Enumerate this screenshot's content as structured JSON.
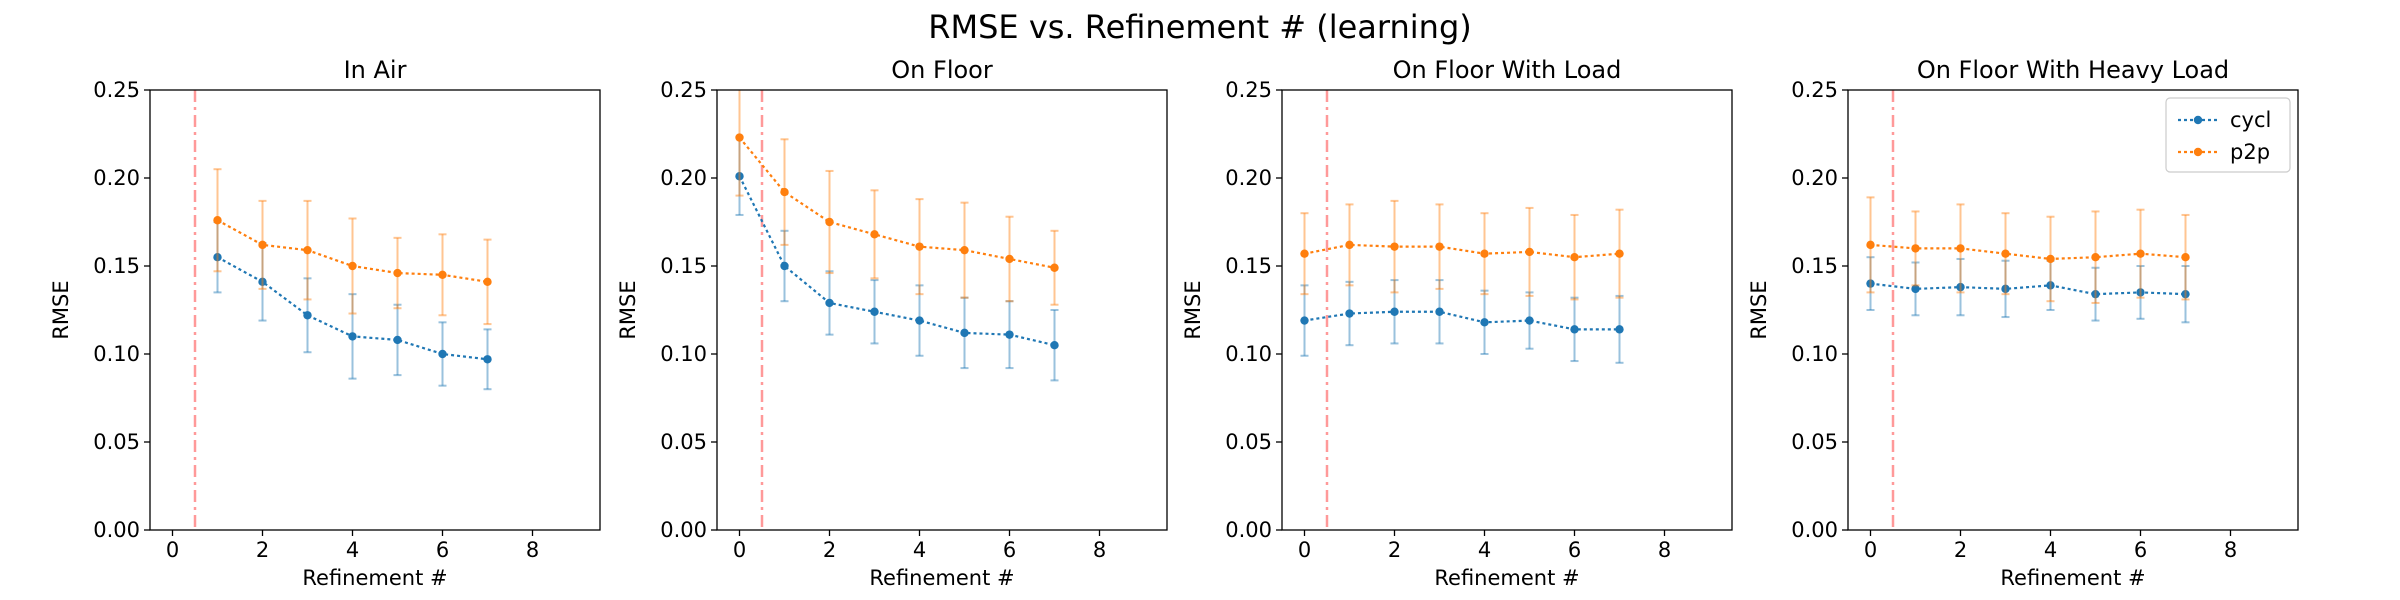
{
  "figure": {
    "suptitle": "RMSE vs. Refinement # (learning)"
  },
  "style": {
    "series_colors": [
      "#1f77b4",
      "#ff7f0e"
    ],
    "vline_color": "#ff9999"
  },
  "legend": {
    "placement": "top-right",
    "panel": 3,
    "entries": [
      "cycl",
      "p2p"
    ]
  },
  "chart_data": [
    {
      "type": "line",
      "title": "In Air",
      "xlabel": "Refinement #",
      "ylabel": "RMSE",
      "xlim": [
        -0.5,
        9.5
      ],
      "ylim": [
        0.0,
        0.25
      ],
      "xticks": [
        "0",
        "2",
        "4",
        "6",
        "8"
      ],
      "yticks": [
        "0.00",
        "0.05",
        "0.10",
        "0.15",
        "0.20",
        "0.25"
      ],
      "vline_x": 0.5,
      "grid": false,
      "series": [
        {
          "name": "cycl",
          "x": [
            1,
            2,
            3,
            4,
            5,
            6,
            7
          ],
          "values": [
            0.155,
            0.141,
            0.122,
            0.11,
            0.108,
            0.1,
            0.097
          ],
          "err": [
            0.02,
            0.022,
            0.021,
            0.024,
            0.02,
            0.018,
            0.017
          ]
        },
        {
          "name": "p2p",
          "x": [
            1,
            2,
            3,
            4,
            5,
            6,
            7
          ],
          "values": [
            0.176,
            0.162,
            0.159,
            0.15,
            0.146,
            0.145,
            0.141
          ],
          "err": [
            0.029,
            0.025,
            0.028,
            0.027,
            0.02,
            0.023,
            0.024
          ]
        }
      ]
    },
    {
      "type": "line",
      "title": "On Floor",
      "xlabel": "Refinement #",
      "ylabel": "RMSE",
      "xlim": [
        -0.5,
        9.5
      ],
      "ylim": [
        0.0,
        0.25
      ],
      "xticks": [
        "0",
        "2",
        "4",
        "6",
        "8"
      ],
      "yticks": [
        "0.00",
        "0.05",
        "0.10",
        "0.15",
        "0.20",
        "0.25"
      ],
      "vline_x": 0.5,
      "grid": false,
      "series": [
        {
          "name": "cycl",
          "x": [
            0,
            1,
            2,
            3,
            4,
            5,
            6,
            7
          ],
          "values": [
            0.201,
            0.15,
            0.129,
            0.124,
            0.119,
            0.112,
            0.111,
            0.105
          ],
          "err": [
            0.022,
            0.02,
            0.018,
            0.018,
            0.02,
            0.02,
            0.019,
            0.02
          ]
        },
        {
          "name": "p2p",
          "x": [
            0,
            1,
            2,
            3,
            4,
            5,
            6,
            7
          ],
          "values": [
            0.223,
            0.192,
            0.175,
            0.168,
            0.161,
            0.159,
            0.154,
            0.149
          ],
          "err": [
            0.033,
            0.03,
            0.029,
            0.025,
            0.027,
            0.027,
            0.024,
            0.021
          ]
        }
      ]
    },
    {
      "type": "line",
      "title": "On Floor With Load",
      "xlabel": "Refinement #",
      "ylabel": "RMSE",
      "xlim": [
        -0.5,
        9.5
      ],
      "ylim": [
        0.0,
        0.25
      ],
      "xticks": [
        "0",
        "2",
        "4",
        "6",
        "8"
      ],
      "yticks": [
        "0.00",
        "0.05",
        "0.10",
        "0.15",
        "0.20",
        "0.25"
      ],
      "vline_x": 0.5,
      "grid": false,
      "series": [
        {
          "name": "cycl",
          "x": [
            0,
            1,
            2,
            3,
            4,
            5,
            6,
            7
          ],
          "values": [
            0.119,
            0.123,
            0.124,
            0.124,
            0.118,
            0.119,
            0.114,
            0.114
          ],
          "err": [
            0.02,
            0.018,
            0.018,
            0.018,
            0.018,
            0.016,
            0.018,
            0.019
          ]
        },
        {
          "name": "p2p",
          "x": [
            0,
            1,
            2,
            3,
            4,
            5,
            6,
            7
          ],
          "values": [
            0.157,
            0.162,
            0.161,
            0.161,
            0.157,
            0.158,
            0.155,
            0.157
          ],
          "err": [
            0.023,
            0.023,
            0.026,
            0.024,
            0.023,
            0.025,
            0.024,
            0.025
          ]
        }
      ]
    },
    {
      "type": "line",
      "title": "On Floor With Heavy Load",
      "xlabel": "Refinement #",
      "ylabel": "RMSE",
      "xlim": [
        -0.5,
        9.5
      ],
      "ylim": [
        0.0,
        0.25
      ],
      "xticks": [
        "0",
        "2",
        "4",
        "6",
        "8"
      ],
      "yticks": [
        "0.00",
        "0.05",
        "0.10",
        "0.15",
        "0.20",
        "0.25"
      ],
      "vline_x": 0.5,
      "grid": false,
      "series": [
        {
          "name": "cycl",
          "x": [
            0,
            1,
            2,
            3,
            4,
            5,
            6,
            7
          ],
          "values": [
            0.14,
            0.137,
            0.138,
            0.137,
            0.139,
            0.134,
            0.135,
            0.134
          ],
          "err": [
            0.015,
            0.015,
            0.016,
            0.016,
            0.014,
            0.015,
            0.015,
            0.016
          ]
        },
        {
          "name": "p2p",
          "x": [
            0,
            1,
            2,
            3,
            4,
            5,
            6,
            7
          ],
          "values": [
            0.162,
            0.16,
            0.16,
            0.157,
            0.154,
            0.155,
            0.157,
            0.155
          ],
          "err": [
            0.027,
            0.021,
            0.025,
            0.023,
            0.024,
            0.026,
            0.025,
            0.024
          ]
        }
      ]
    }
  ]
}
